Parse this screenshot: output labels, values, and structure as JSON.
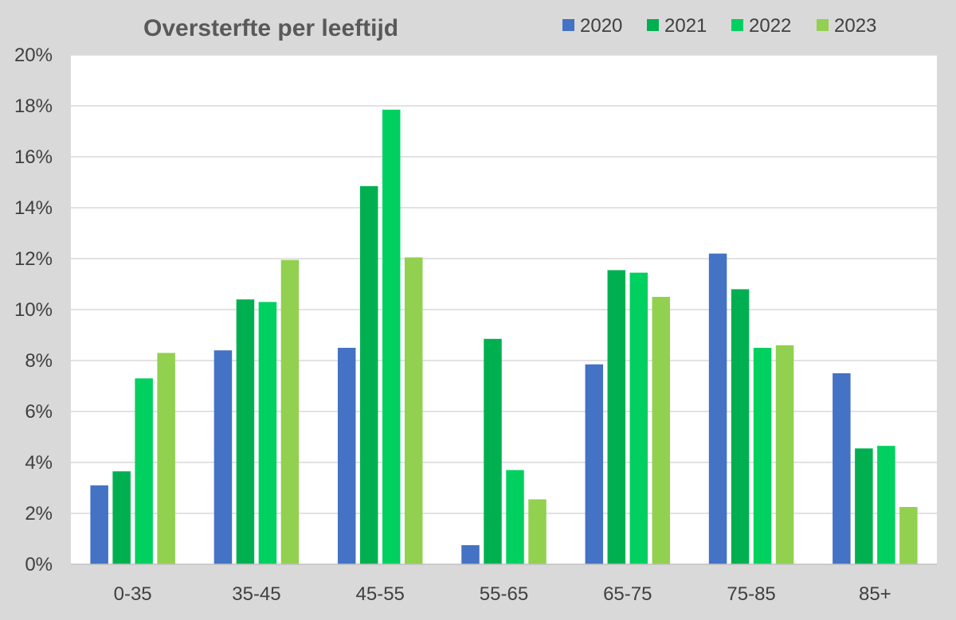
{
  "chart_data": {
    "type": "bar",
    "title": "Oversterfte per leeftijd",
    "xlabel": "",
    "ylabel": "",
    "categories": [
      "0-35",
      "35-45",
      "45-55",
      "55-65",
      "65-75",
      "75-85",
      "85+"
    ],
    "series": [
      {
        "name": "2020",
        "color": "#4472c4",
        "values": [
          3.1,
          8.4,
          8.5,
          0.75,
          7.85,
          12.2,
          7.5
        ]
      },
      {
        "name": "2021",
        "color": "#00b050",
        "values": [
          3.65,
          10.4,
          14.85,
          8.85,
          11.55,
          10.8,
          4.55
        ]
      },
      {
        "name": "2022",
        "color": "#00d060",
        "values": [
          7.3,
          10.3,
          17.85,
          3.7,
          11.45,
          8.5,
          4.65
        ]
      },
      {
        "name": "2023",
        "color": "#92d050",
        "values": [
          8.3,
          11.95,
          12.05,
          2.55,
          10.5,
          8.6,
          2.25
        ]
      }
    ],
    "ylim": [
      0,
      20
    ],
    "yticks": [
      0,
      2,
      4,
      6,
      8,
      10,
      12,
      14,
      16,
      18,
      20
    ],
    "ytick_suffix": "%",
    "grid": true,
    "legend_position": "top-right",
    "plot_background": "#ffffff",
    "page_background": "#d9d9d9",
    "gridline_color": "#d9d9d9"
  }
}
